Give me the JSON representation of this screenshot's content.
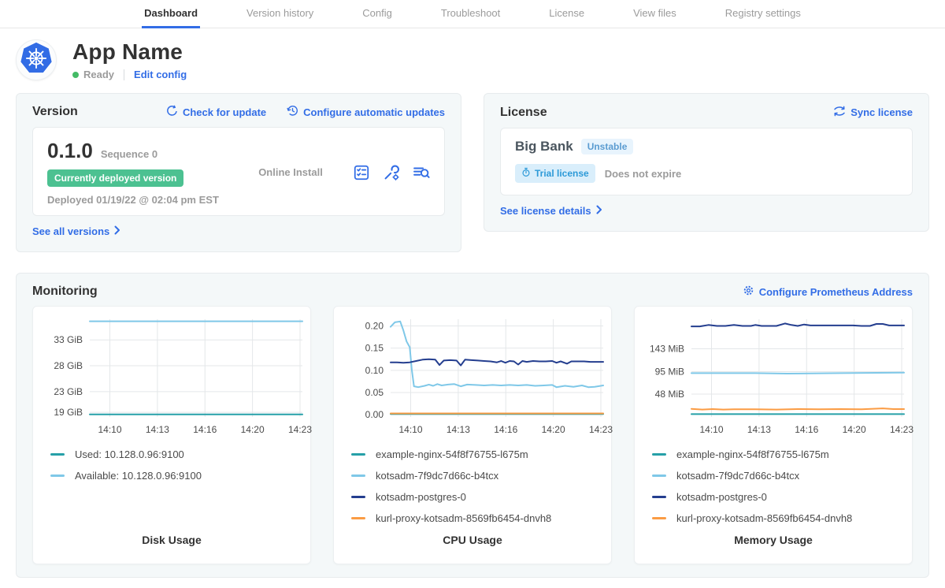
{
  "nav": {
    "tabs": [
      {
        "label": "Dashboard",
        "active": true
      },
      {
        "label": "Version history",
        "active": false
      },
      {
        "label": "Config",
        "active": false
      },
      {
        "label": "Troubleshoot",
        "active": false
      },
      {
        "label": "License",
        "active": false
      },
      {
        "label": "View files",
        "active": false
      },
      {
        "label": "Registry settings",
        "active": false
      }
    ]
  },
  "app": {
    "name": "App Name",
    "status": "Ready",
    "edit_config": "Edit config"
  },
  "version_card": {
    "title": "Version",
    "check_for_update": "Check for update",
    "configure_auto": "Configure automatic updates",
    "version": "0.1.0",
    "sequence": "Sequence 0",
    "deployed_badge": "Currently deployed version",
    "deployed_at": "Deployed 01/19/22 @ 02:04 pm EST",
    "install_type": "Online Install",
    "action_icons": [
      "preflight-checklist-icon",
      "config-wrench-gear-icon",
      "view-logs-icon"
    ],
    "see_all": "See all versions"
  },
  "license_card": {
    "title": "License",
    "sync": "Sync license",
    "name": "Big Bank",
    "channel": "Unstable",
    "trial_badge": "Trial license",
    "expiry": "Does not expire",
    "see_details": "See license details"
  },
  "monitoring": {
    "title": "Monitoring",
    "configure_prometheus": "Configure Prometheus Address"
  },
  "colors": {
    "accent_blue": "#326de6",
    "status_green": "#44bb66",
    "deployed_badge_green": "#4cc191",
    "series_teal": "#26a0a8",
    "series_lightblue": "#7fc8e8",
    "series_navy": "#243e8f",
    "series_orange": "#fb9c44"
  },
  "chart_data": [
    {
      "type": "line",
      "title": "Disk Usage",
      "x_ticks": [
        "14:10",
        "14:13",
        "14:16",
        "14:20",
        "14:23"
      ],
      "y_ticks": [
        {
          "value": 33,
          "label": "33 GiB"
        },
        {
          "value": 28,
          "label": "28 GiB"
        },
        {
          "value": 23,
          "label": "23 GiB"
        },
        {
          "value": 19,
          "label": "19 GiB"
        }
      ],
      "ylim": [
        18.1,
        37.0
      ],
      "series": [
        {
          "name": "Used: 10.128.0.96:9100",
          "color": "#26a0a8",
          "points": [
            [
              0,
              18.6
            ],
            [
              1,
              18.6
            ]
          ]
        },
        {
          "name": "Available: 10.128.0.96:9100",
          "color": "#7fc8e8",
          "points": [
            [
              0,
              36.6
            ],
            [
              1,
              36.6
            ]
          ]
        }
      ]
    },
    {
      "type": "line",
      "title": "CPU Usage",
      "x_ticks": [
        "14:10",
        "14:13",
        "14:16",
        "14:20",
        "14:23"
      ],
      "y_ticks": [
        {
          "value": 0.2,
          "label": "0.20"
        },
        {
          "value": 0.15,
          "label": "0.15"
        },
        {
          "value": 0.1,
          "label": "0.10"
        },
        {
          "value": 0.05,
          "label": "0.05"
        },
        {
          "value": 0.0,
          "label": "0.00"
        }
      ],
      "ylim": [
        -0.005,
        0.215
      ],
      "series": [
        {
          "name": "example-nginx-54f8f76755-l675m",
          "color": "#26a0a8",
          "points": [
            [
              0,
              0.0015
            ],
            [
              1,
              0.0015
            ]
          ]
        },
        {
          "name": "kotsadm-7f9dc7d66c-b4tcx",
          "color": "#7fc8e8",
          "points": [
            [
              0,
              0.198
            ],
            [
              0.02,
              0.208
            ],
            [
              0.045,
              0.21
            ],
            [
              0.06,
              0.19
            ],
            [
              0.075,
              0.165
            ],
            [
              0.09,
              0.152
            ],
            [
              0.1,
              0.1
            ],
            [
              0.11,
              0.064
            ],
            [
              0.13,
              0.062
            ],
            [
              0.16,
              0.065
            ],
            [
              0.18,
              0.068
            ],
            [
              0.2,
              0.065
            ],
            [
              0.22,
              0.069
            ],
            [
              0.24,
              0.066
            ],
            [
              0.27,
              0.068
            ],
            [
              0.3,
              0.069
            ],
            [
              0.33,
              0.064
            ],
            [
              0.36,
              0.068
            ],
            [
              0.4,
              0.067
            ],
            [
              0.44,
              0.066
            ],
            [
              0.48,
              0.067
            ],
            [
              0.52,
              0.066
            ],
            [
              0.56,
              0.067
            ],
            [
              0.6,
              0.066
            ],
            [
              0.64,
              0.067
            ],
            [
              0.68,
              0.065
            ],
            [
              0.72,
              0.066
            ],
            [
              0.76,
              0.067
            ],
            [
              0.78,
              0.062
            ],
            [
              0.82,
              0.065
            ],
            [
              0.86,
              0.063
            ],
            [
              0.9,
              0.066
            ],
            [
              0.93,
              0.062
            ],
            [
              0.96,
              0.063
            ],
            [
              1,
              0.066
            ]
          ]
        },
        {
          "name": "kotsadm-postgres-0",
          "color": "#243e8f",
          "points": [
            [
              0,
              0.118
            ],
            [
              0.03,
              0.118
            ],
            [
              0.06,
              0.117
            ],
            [
              0.09,
              0.118
            ],
            [
              0.12,
              0.121
            ],
            [
              0.15,
              0.124
            ],
            [
              0.18,
              0.125
            ],
            [
              0.21,
              0.124
            ],
            [
              0.23,
              0.112
            ],
            [
              0.25,
              0.122
            ],
            [
              0.28,
              0.123
            ],
            [
              0.31,
              0.122
            ],
            [
              0.33,
              0.111
            ],
            [
              0.35,
              0.124
            ],
            [
              0.38,
              0.123
            ],
            [
              0.41,
              0.122
            ],
            [
              0.44,
              0.121
            ],
            [
              0.47,
              0.12
            ],
            [
              0.5,
              0.118
            ],
            [
              0.52,
              0.121
            ],
            [
              0.54,
              0.117
            ],
            [
              0.56,
              0.121
            ],
            [
              0.58,
              0.12
            ],
            [
              0.6,
              0.113
            ],
            [
              0.62,
              0.121
            ],
            [
              0.64,
              0.119
            ],
            [
              0.67,
              0.121
            ],
            [
              0.7,
              0.12
            ],
            [
              0.73,
              0.12
            ],
            [
              0.76,
              0.121
            ],
            [
              0.78,
              0.117
            ],
            [
              0.8,
              0.12
            ],
            [
              0.83,
              0.115
            ],
            [
              0.85,
              0.12
            ],
            [
              0.88,
              0.12
            ],
            [
              0.91,
              0.12
            ],
            [
              0.94,
              0.119
            ],
            [
              0.97,
              0.119
            ],
            [
              1,
              0.119
            ]
          ]
        },
        {
          "name": "kurl-proxy-kotsadm-8569fb6454-dnvh8",
          "color": "#fb9c44",
          "points": [
            [
              0,
              0.003
            ],
            [
              1,
              0.003
            ]
          ]
        }
      ]
    },
    {
      "type": "line",
      "title": "Memory Usage",
      "x_ticks": [
        "14:10",
        "14:13",
        "14:16",
        "14:20",
        "14:23"
      ],
      "y_ticks": [
        {
          "value": 143,
          "label": "143 MiB"
        },
        {
          "value": 95,
          "label": "95 MiB"
        },
        {
          "value": 48,
          "label": "48 MiB"
        }
      ],
      "ylim": [
        0,
        205
      ],
      "series": [
        {
          "name": "example-nginx-54f8f76755-l675m",
          "color": "#26a0a8",
          "points": [
            [
              0,
              6
            ],
            [
              1,
              6
            ]
          ]
        },
        {
          "name": "kotsadm-7f9dc7d66c-b4tcx",
          "color": "#7fc8e8",
          "points": [
            [
              0,
              92
            ],
            [
              0.3,
              92
            ],
            [
              0.45,
              91
            ],
            [
              0.7,
              92
            ],
            [
              1,
              93
            ]
          ]
        },
        {
          "name": "kotsadm-postgres-0",
          "color": "#243e8f",
          "points": [
            [
              0,
              190
            ],
            [
              0.04,
              190
            ],
            [
              0.08,
              193
            ],
            [
              0.12,
              191
            ],
            [
              0.16,
              191
            ],
            [
              0.2,
              193
            ],
            [
              0.24,
              191
            ],
            [
              0.28,
              191
            ],
            [
              0.3,
              193
            ],
            [
              0.33,
              191
            ],
            [
              0.36,
              191
            ],
            [
              0.4,
              191
            ],
            [
              0.44,
              196
            ],
            [
              0.47,
              193
            ],
            [
              0.5,
              191
            ],
            [
              0.53,
              194
            ],
            [
              0.56,
              192
            ],
            [
              0.6,
              192
            ],
            [
              0.64,
              192
            ],
            [
              0.68,
              192
            ],
            [
              0.72,
              192
            ],
            [
              0.76,
              192
            ],
            [
              0.8,
              191
            ],
            [
              0.84,
              191
            ],
            [
              0.87,
              195
            ],
            [
              0.9,
              195
            ],
            [
              0.93,
              192
            ],
            [
              0.96,
              192
            ],
            [
              1,
              192
            ]
          ]
        },
        {
          "name": "kurl-proxy-kotsadm-8569fb6454-dnvh8",
          "color": "#fb9c44",
          "points": [
            [
              0,
              17
            ],
            [
              0.05,
              15.5
            ],
            [
              0.1,
              16.5
            ],
            [
              0.15,
              15.5
            ],
            [
              0.2,
              16
            ],
            [
              0.3,
              16
            ],
            [
              0.4,
              15.5
            ],
            [
              0.5,
              16.5
            ],
            [
              0.6,
              16
            ],
            [
              0.7,
              16.5
            ],
            [
              0.8,
              16
            ],
            [
              0.9,
              18
            ],
            [
              0.95,
              16.5
            ],
            [
              1,
              16.5
            ]
          ]
        }
      ]
    }
  ]
}
